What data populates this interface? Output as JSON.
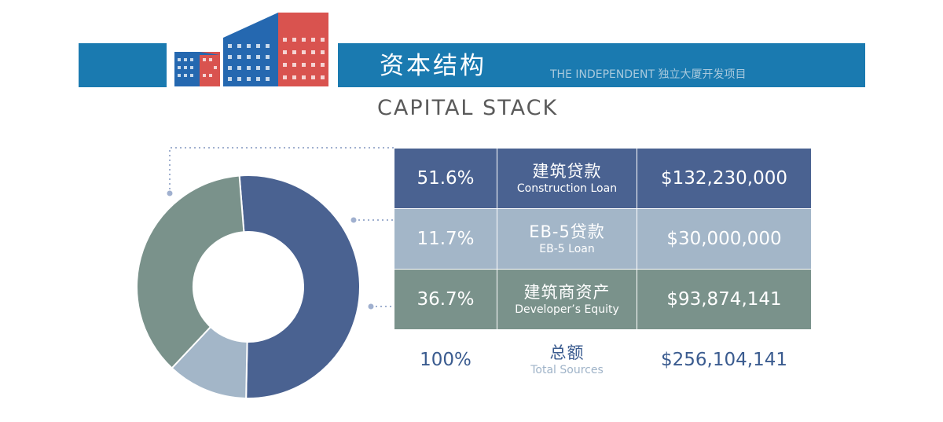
{
  "colors": {
    "banner": "#1a7ab0",
    "construction": "#4a6291",
    "eb5": "#a3b6c8",
    "equity": "#7a928b",
    "total_text": "#3a5b8f",
    "leader_dots": "#a0b0cf",
    "logo_blue": "#2568b0",
    "logo_red": "#d9534f"
  },
  "header": {
    "title": "资本结构",
    "subtitle": "THE INDEPENDENT 独立大厦开发项目",
    "section_title": "CAPITAL STACK"
  },
  "table": {
    "rows": [
      {
        "pct": "51.6%",
        "zh": "建筑贷款",
        "en": "Construction Loan",
        "amount": "$132,230,000"
      },
      {
        "pct": "11.7%",
        "zh": "EB-5贷款",
        "en": "EB-5 Loan",
        "amount": "$30,000,000"
      },
      {
        "pct": "36.7%",
        "zh": "建筑商资产",
        "en": "Developer’s Equity",
        "amount": "$93,874,141"
      }
    ],
    "total": {
      "pct": "100%",
      "zh": "总额",
      "en": "Total Sources",
      "amount": "$256,104,141"
    }
  },
  "chart_data": {
    "type": "pie",
    "style": "donut",
    "categories": [
      "Construction Loan",
      "EB-5 Loan",
      "Developer’s Equity"
    ],
    "values": [
      51.6,
      11.7,
      36.7
    ],
    "colors": [
      "#4a6291",
      "#a3b6c8",
      "#7a928b"
    ],
    "title": "CAPITAL STACK"
  }
}
